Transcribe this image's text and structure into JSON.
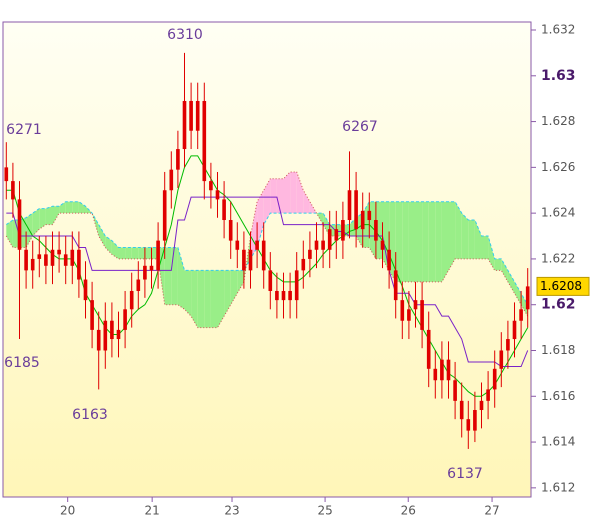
{
  "chart_data": {
    "type": "candlestick",
    "annotations": [
      "6310",
      "6271",
      "6267",
      "6185",
      "6163",
      "6137"
    ],
    "xlim": [
      0,
      80
    ],
    "xticks": [
      {
        "value": 9.8,
        "label": "20"
      },
      {
        "value": 22.6,
        "label": "21"
      },
      {
        "value": 34.7,
        "label": "23"
      },
      {
        "value": 48.8,
        "label": "25"
      },
      {
        "value": 61.4,
        "label": "26"
      },
      {
        "value": 74.1,
        "label": "27"
      }
    ],
    "ylim": [
      1.6116,
      1.63235
    ],
    "yticks": [
      1.612,
      1.614,
      1.616,
      1.618,
      1.62,
      1.622,
      1.624,
      1.626,
      1.628,
      1.63,
      1.632
    ],
    "last_price": 1.6208,
    "candles": {
      "color": "#e00000",
      "open": [
        1.626,
        1.6254,
        1.6246,
        1.6224,
        1.6215,
        1.622,
        1.6222,
        1.6217,
        1.6224,
        1.6222,
        1.6217,
        1.6224,
        1.6211,
        1.6202,
        1.6189,
        1.618,
        1.6193,
        1.6185,
        1.6189,
        1.6198,
        1.6206,
        1.6211,
        1.6217,
        1.6215,
        1.6228,
        1.625,
        1.6259,
        1.6268,
        1.6289,
        1.6276,
        1.6289,
        1.6254,
        1.625,
        1.6246,
        1.6237,
        1.6228,
        1.6224,
        1.6215,
        1.6224,
        1.6228,
        1.6215,
        1.6206,
        1.6202,
        1.6206,
        1.6202,
        1.6215,
        1.622,
        1.6224,
        1.6228,
        1.6224,
        1.6233,
        1.6228,
        1.6237,
        1.625,
        1.6233,
        1.6241,
        1.6237,
        1.6228,
        1.6224,
        1.6215,
        1.6202,
        1.6193,
        1.6198,
        1.6202,
        1.6189,
        1.6172,
        1.6167,
        1.6176,
        1.6167,
        1.6158,
        1.615,
        1.6145,
        1.6154,
        1.6158,
        1.6163,
        1.6172,
        1.618,
        1.6185,
        1.6193,
        1.6198
      ],
      "high": [
        1.6271,
        1.6262,
        1.6254,
        1.6232,
        1.6228,
        1.623,
        1.623,
        1.6232,
        1.6232,
        1.623,
        1.6232,
        1.6232,
        1.6219,
        1.621,
        1.6197,
        1.6201,
        1.6201,
        1.6197,
        1.6206,
        1.6214,
        1.6219,
        1.6225,
        1.6225,
        1.6236,
        1.6258,
        1.6267,
        1.6276,
        1.631,
        1.6297,
        1.6297,
        1.6297,
        1.6262,
        1.6258,
        1.6254,
        1.6245,
        1.6236,
        1.6232,
        1.6232,
        1.6236,
        1.6236,
        1.6223,
        1.6214,
        1.6214,
        1.6214,
        1.6223,
        1.6228,
        1.6232,
        1.6236,
        1.6236,
        1.6241,
        1.6241,
        1.6245,
        1.6267,
        1.6258,
        1.6249,
        1.6249,
        1.6245,
        1.6236,
        1.6232,
        1.6223,
        1.621,
        1.6206,
        1.621,
        1.621,
        1.6197,
        1.618,
        1.6184,
        1.6184,
        1.6175,
        1.6166,
        1.6158,
        1.6162,
        1.6166,
        1.6171,
        1.618,
        1.6188,
        1.6193,
        1.6201,
        1.6206,
        1.6216
      ],
      "low": [
        1.6246,
        1.6238,
        1.6185,
        1.6207,
        1.6207,
        1.6212,
        1.6209,
        1.6209,
        1.6214,
        1.6209,
        1.6209,
        1.6203,
        1.6194,
        1.6181,
        1.6163,
        1.6172,
        1.6177,
        1.6177,
        1.6181,
        1.619,
        1.6198,
        1.6203,
        1.6207,
        1.6207,
        1.622,
        1.6242,
        1.6251,
        1.626,
        1.6268,
        1.6268,
        1.6246,
        1.6242,
        1.6238,
        1.6229,
        1.622,
        1.6216,
        1.6207,
        1.6207,
        1.6216,
        1.6207,
        1.6198,
        1.6194,
        1.6194,
        1.6194,
        1.6194,
        1.6207,
        1.6212,
        1.6216,
        1.6216,
        1.6216,
        1.622,
        1.622,
        1.6229,
        1.6225,
        1.6225,
        1.6229,
        1.622,
        1.6216,
        1.6207,
        1.6194,
        1.6185,
        1.6185,
        1.619,
        1.6181,
        1.6164,
        1.6159,
        1.6159,
        1.6159,
        1.615,
        1.6142,
        1.6137,
        1.614,
        1.6146,
        1.615,
        1.6155,
        1.6164,
        1.6172,
        1.6177,
        1.6185,
        1.619
      ],
      "close": [
        1.6254,
        1.6246,
        1.6224,
        1.6215,
        1.622,
        1.6222,
        1.6217,
        1.6224,
        1.6222,
        1.6217,
        1.6224,
        1.6211,
        1.6202,
        1.6189,
        1.618,
        1.6193,
        1.6185,
        1.6189,
        1.6198,
        1.6206,
        1.6211,
        1.6217,
        1.6215,
        1.6228,
        1.625,
        1.6259,
        1.6268,
        1.6289,
        1.6276,
        1.6289,
        1.6254,
        1.625,
        1.6246,
        1.6237,
        1.6228,
        1.6224,
        1.6215,
        1.6224,
        1.6228,
        1.6215,
        1.6206,
        1.6202,
        1.6206,
        1.6202,
        1.6215,
        1.622,
        1.6224,
        1.6228,
        1.6224,
        1.6233,
        1.6228,
        1.6237,
        1.625,
        1.6233,
        1.6241,
        1.6237,
        1.6228,
        1.6224,
        1.6215,
        1.6202,
        1.6193,
        1.6198,
        1.6202,
        1.6189,
        1.6172,
        1.6167,
        1.6176,
        1.6167,
        1.6158,
        1.615,
        1.6145,
        1.6154,
        1.6158,
        1.6163,
        1.6172,
        1.618,
        1.6185,
        1.6193,
        1.6198,
        1.6208
      ]
    },
    "lines": [
      {
        "color": "#00bb00",
        "values": [
          1.625,
          1.625,
          1.624,
          1.6235,
          1.623,
          1.6228,
          1.6225,
          1.6222,
          1.622,
          1.622,
          1.622,
          1.6215,
          1.6205,
          1.62,
          1.6195,
          1.619,
          1.6187,
          1.6187,
          1.619,
          1.6195,
          1.6198,
          1.62,
          1.6205,
          1.6215,
          1.6225,
          1.6235,
          1.625,
          1.626,
          1.6265,
          1.6265,
          1.626,
          1.6255,
          1.625,
          1.6248,
          1.6245,
          1.624,
          1.6235,
          1.623,
          1.6225,
          1.622,
          1.6215,
          1.6212,
          1.621,
          1.621,
          1.621,
          1.6212,
          1.6215,
          1.6218,
          1.6222,
          1.6225,
          1.6228,
          1.623,
          1.6232,
          1.6233,
          1.6235,
          1.6235,
          1.6232,
          1.6228,
          1.6222,
          1.6215,
          1.6208,
          1.62,
          1.6195,
          1.619,
          1.6185,
          1.618,
          1.6175,
          1.617,
          1.6168,
          1.6165,
          1.6162,
          1.616,
          1.616,
          1.6162,
          1.6165,
          1.617,
          1.6175,
          1.618,
          1.6185,
          1.619
        ]
      },
      {
        "color": "#7a22c8",
        "values": [
          1.624,
          1.624,
          1.623,
          1.623,
          1.623,
          1.623,
          1.623,
          1.623,
          1.623,
          1.623,
          1.623,
          1.6225,
          1.6225,
          1.6215,
          1.6215,
          1.6215,
          1.6215,
          1.6215,
          1.6215,
          1.6215,
          1.6215,
          1.6215,
          1.6215,
          1.6215,
          1.6215,
          1.6215,
          1.6237,
          1.6237,
          1.6247,
          1.6247,
          1.6247,
          1.6247,
          1.6247,
          1.6247,
          1.6247,
          1.6247,
          1.6247,
          1.6247,
          1.6247,
          1.6247,
          1.6247,
          1.6247,
          1.6235,
          1.6235,
          1.6235,
          1.6235,
          1.6235,
          1.6235,
          1.6235,
          1.6235,
          1.6232,
          1.6232,
          1.623,
          1.623,
          1.623,
          1.623,
          1.623,
          1.623,
          1.6215,
          1.6205,
          1.6205,
          1.6205,
          1.62,
          1.62,
          1.62,
          1.62,
          1.6195,
          1.6195,
          1.619,
          1.6185,
          1.6175,
          1.6175,
          1.6175,
          1.6175,
          1.6175,
          1.6173,
          1.6173,
          1.6173,
          1.6173,
          1.618
        ]
      }
    ],
    "cloud": {
      "up_color": "#99ee88",
      "down_color": "#ffb8e0",
      "span_a_color": "#33ccee",
      "span_b_color": "#cc5555",
      "span_a": [
        1.6235,
        1.6237,
        1.6237,
        1.6238,
        1.624,
        1.6242,
        1.6242,
        1.6243,
        1.6243,
        1.6245,
        1.6245,
        1.6245,
        1.6243,
        1.624,
        1.6235,
        1.623,
        1.6228,
        1.6225,
        1.6225,
        1.6225,
        1.6225,
        1.6225,
        1.6225,
        1.6225,
        1.6225,
        1.6225,
        1.6225,
        1.6215,
        1.6215,
        1.6215,
        1.6215,
        1.6215,
        1.6215,
        1.6215,
        1.6215,
        1.6215,
        1.6215,
        1.622,
        1.6225,
        1.6235,
        1.624,
        1.624,
        1.624,
        1.624,
        1.624,
        1.624,
        1.624,
        1.624,
        1.624,
        1.6235,
        1.6235,
        1.6235,
        1.6235,
        1.6238,
        1.624,
        1.6245,
        1.6245,
        1.6245,
        1.6245,
        1.6245,
        1.6245,
        1.6245,
        1.6245,
        1.6245,
        1.6245,
        1.6245,
        1.6245,
        1.6245,
        1.6245,
        1.624,
        1.6237,
        1.6237,
        1.623,
        1.623,
        1.622,
        1.622,
        1.6215,
        1.621,
        1.6205,
        1.62
      ],
      "span_b": [
        1.623,
        1.6225,
        1.6225,
        1.6225,
        1.623,
        1.6233,
        1.6235,
        1.6235,
        1.624,
        1.624,
        1.624,
        1.624,
        1.624,
        1.624,
        1.623,
        1.6225,
        1.6222,
        1.622,
        1.622,
        1.622,
        1.622,
        1.622,
        1.622,
        1.622,
        1.62,
        1.62,
        1.62,
        1.6198,
        1.6195,
        1.619,
        1.619,
        1.619,
        1.619,
        1.6195,
        1.62,
        1.6205,
        1.621,
        1.623,
        1.6245,
        1.625,
        1.6255,
        1.6255,
        1.6255,
        1.6258,
        1.6258,
        1.625,
        1.6245,
        1.624,
        1.6235,
        1.623,
        1.623,
        1.623,
        1.623,
        1.623,
        1.6225,
        1.6225,
        1.622,
        1.622,
        1.6215,
        1.621,
        1.621,
        1.621,
        1.621,
        1.621,
        1.621,
        1.621,
        1.621,
        1.6215,
        1.622,
        1.622,
        1.622,
        1.622,
        1.622,
        1.622,
        1.6215,
        1.6215,
        1.621,
        1.6205,
        1.62,
        1.6195
      ]
    }
  }
}
